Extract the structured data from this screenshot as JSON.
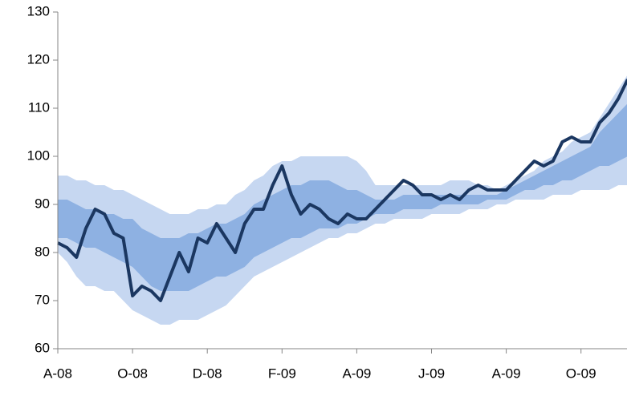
{
  "chart_data": {
    "type": "fan",
    "categories": [
      "A-08",
      null,
      null,
      null,
      null,
      null,
      null,
      null,
      "O-08",
      null,
      null,
      null,
      null,
      null,
      null,
      null,
      "D-08",
      null,
      null,
      null,
      null,
      null,
      null,
      null,
      "F-09",
      null,
      null,
      null,
      null,
      null,
      null,
      null,
      "A-09",
      null,
      null,
      null,
      null,
      null,
      null,
      null,
      "J-09",
      null,
      null,
      null,
      null,
      null,
      null,
      null,
      "A-09",
      null,
      null,
      null,
      null,
      null,
      null,
      null,
      "O-09",
      null,
      null,
      null,
      null,
      null
    ],
    "ylim": [
      60,
      130
    ],
    "yticks": [
      60,
      70,
      80,
      90,
      100,
      110,
      120,
      130
    ],
    "bands": [
      {
        "color": "#c6d7f1",
        "upper": [
          96,
          96,
          95,
          95,
          94,
          94,
          93,
          93,
          92,
          91,
          90,
          89,
          88,
          88,
          88,
          89,
          89,
          90,
          90,
          92,
          93,
          95,
          96,
          98,
          99,
          99,
          100,
          100,
          100,
          100,
          100,
          100,
          99,
          97,
          94,
          94,
          94,
          94,
          94,
          94,
          94,
          94,
          95,
          95,
          95,
          94,
          94,
          93,
          94,
          95,
          96,
          97,
          99,
          100,
          101,
          103,
          104,
          105,
          108,
          111,
          114,
          117
        ],
        "lower": [
          80,
          78,
          75,
          73,
          73,
          72,
          72,
          70,
          68,
          67,
          66,
          65,
          65,
          66,
          66,
          66,
          67,
          68,
          69,
          71,
          73,
          75,
          76,
          77,
          78,
          79,
          80,
          81,
          82,
          83,
          83,
          84,
          84,
          85,
          86,
          86,
          87,
          87,
          87,
          87,
          88,
          88,
          88,
          88,
          89,
          89,
          89,
          90,
          90,
          91,
          91,
          91,
          91,
          92,
          92,
          92,
          93,
          93,
          93,
          93,
          94,
          94
        ]
      },
      {
        "color": "#8eb1e2",
        "upper": [
          91,
          91,
          90,
          89,
          89,
          88,
          88,
          87,
          87,
          85,
          84,
          83,
          83,
          83,
          84,
          84,
          85,
          86,
          86,
          87,
          88,
          90,
          91,
          92,
          93,
          94,
          94,
          95,
          95,
          95,
          94,
          93,
          93,
          92,
          91,
          91,
          91,
          92,
          92,
          92,
          92,
          92,
          92,
          92,
          92,
          92,
          92,
          92,
          93,
          94,
          95,
          96,
          97,
          98,
          99,
          100,
          101,
          102,
          105,
          107,
          109,
          111
        ],
        "lower": [
          83,
          83,
          82,
          81,
          81,
          80,
          79,
          78,
          77,
          75,
          73,
          72,
          72,
          72,
          72,
          73,
          74,
          75,
          75,
          76,
          77,
          79,
          80,
          81,
          82,
          83,
          83,
          84,
          85,
          85,
          85,
          86,
          86,
          87,
          88,
          88,
          88,
          89,
          89,
          89,
          89,
          90,
          90,
          90,
          90,
          90,
          91,
          91,
          91,
          92,
          93,
          93,
          94,
          94,
          95,
          95,
          96,
          97,
          98,
          98,
          99,
          100
        ]
      }
    ],
    "line": {
      "color": "#1b3761",
      "values": [
        82,
        81,
        79,
        85,
        89,
        88,
        84,
        83,
        71,
        73,
        72,
        70,
        75,
        80,
        76,
        83,
        82,
        86,
        83,
        80,
        86,
        89,
        89,
        94,
        98,
        92,
        88,
        90,
        89,
        87,
        86,
        88,
        87,
        87,
        89,
        91,
        93,
        95,
        94,
        92,
        92,
        91,
        92,
        91,
        93,
        94,
        93,
        93,
        93,
        95,
        97,
        99,
        98,
        99,
        103,
        104,
        103,
        103,
        107,
        109,
        112,
        116
      ]
    }
  }
}
